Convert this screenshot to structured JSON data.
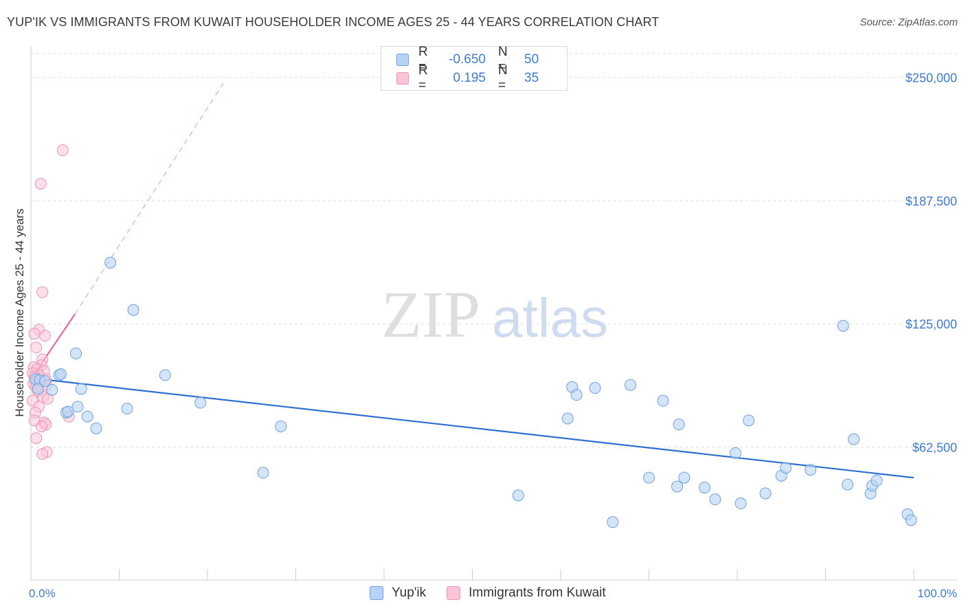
{
  "title": "YUP'IK VS IMMIGRANTS FROM KUWAIT HOUSEHOLDER INCOME AGES 25 - 44 YEARS CORRELATION CHART",
  "source": "Source: ZipAtlas.com",
  "watermark": {
    "zip": "ZIP",
    "atlas": "atlas"
  },
  "colors": {
    "blue_fill": "#b8d3f5",
    "blue_stroke": "#6ea0e0",
    "blue_line": "#2f6fd0",
    "pink_fill": "#f9c4d6",
    "pink_stroke": "#ee93b3",
    "pink_line": "#e76a95",
    "accent_text": "#3f7bd1",
    "grid": "#dddddd"
  },
  "legend": {
    "rows": [
      {
        "r_label": "R =",
        "r_value": "-0.650",
        "n_label": "N =",
        "n_value": "50"
      },
      {
        "r_label": "R =",
        "r_value": "0.195",
        "n_label": "N =",
        "n_value": "35"
      }
    ]
  },
  "bottom_legend": [
    {
      "label": "Yup'ik"
    },
    {
      "label": "Immigrants from Kuwait"
    }
  ],
  "chart_data": {
    "type": "scatter",
    "title": "YUP'IK VS IMMIGRANTS FROM KUWAIT HOUSEHOLDER INCOME AGES 25 - 44 YEARS CORRELATION CHART",
    "xlabel": "",
    "ylabel": "Householder Income Ages 25 - 44 years",
    "xlim": [
      0,
      100
    ],
    "ylim": [
      0,
      262000
    ],
    "x_tick_labels": [
      "0.0%",
      "100.0%"
    ],
    "y_ticks": [
      62500,
      125000,
      187500,
      250000
    ],
    "y_tick_labels": [
      "$62,500",
      "$125,000",
      "$187,500",
      "$250,000"
    ],
    "grid": true,
    "series": [
      {
        "name": "Yup'ik",
        "R": -0.65,
        "N": 50,
        "trend": {
          "x0": 0,
          "y0": 97500,
          "x1": 100,
          "y1": 47000
        },
        "points": [
          [
            0.5,
            97000
          ],
          [
            1.0,
            96500
          ],
          [
            1.6,
            96000
          ],
          [
            2.4,
            91500
          ],
          [
            3.2,
            99000
          ],
          [
            3.4,
            99500
          ],
          [
            4.0,
            80000
          ],
          [
            4.2,
            80500
          ],
          [
            5.1,
            110000
          ],
          [
            5.3,
            83000
          ],
          [
            5.7,
            92000
          ],
          [
            6.4,
            78000
          ],
          [
            7.4,
            72000
          ],
          [
            9.0,
            156000
          ],
          [
            10.9,
            82000
          ],
          [
            11.6,
            132000
          ],
          [
            15.2,
            99000
          ],
          [
            19.2,
            85000
          ],
          [
            26.3,
            49500
          ],
          [
            28.3,
            73000
          ],
          [
            55.2,
            38000
          ],
          [
            60.8,
            77000
          ],
          [
            61.3,
            93000
          ],
          [
            61.8,
            89000
          ],
          [
            63.9,
            92500
          ],
          [
            65.9,
            24500
          ],
          [
            67.9,
            94000
          ],
          [
            70.0,
            47000
          ],
          [
            71.6,
            86000
          ],
          [
            73.2,
            42500
          ],
          [
            73.4,
            74000
          ],
          [
            74.0,
            47000
          ],
          [
            76.3,
            42000
          ],
          [
            77.5,
            36000
          ],
          [
            79.8,
            59500
          ],
          [
            80.4,
            34000
          ],
          [
            81.3,
            76000
          ],
          [
            83.2,
            39000
          ],
          [
            85.0,
            48000
          ],
          [
            85.5,
            52000
          ],
          [
            88.3,
            51000
          ],
          [
            92.0,
            124000
          ],
          [
            92.5,
            43500
          ],
          [
            93.2,
            66500
          ],
          [
            95.1,
            39000
          ],
          [
            95.3,
            43000
          ],
          [
            95.8,
            45500
          ],
          [
            99.3,
            28500
          ],
          [
            99.7,
            25500
          ],
          [
            0.8,
            92000
          ]
        ]
      },
      {
        "name": "Immigrants from Kuwait",
        "R": 0.195,
        "N": 35,
        "trend_solid": {
          "x0": 0,
          "y0": 97000,
          "x1": 5,
          "y1": 130000
        },
        "trend_dashed": {
          "x0": 5,
          "y0": 130000,
          "x1": 21.8,
          "y1": 247000
        },
        "points": [
          [
            3.6,
            213000
          ],
          [
            1.1,
            196000
          ],
          [
            1.3,
            141000
          ],
          [
            0.9,
            122000
          ],
          [
            0.4,
            120000
          ],
          [
            1.6,
            119000
          ],
          [
            0.6,
            113000
          ],
          [
            1.3,
            107000
          ],
          [
            1.2,
            104000
          ],
          [
            0.3,
            103000
          ],
          [
            0.7,
            102000
          ],
          [
            1.5,
            101000
          ],
          [
            0.2,
            100000
          ],
          [
            0.9,
            99000
          ],
          [
            0.4,
            98000
          ],
          [
            1.7,
            97000
          ],
          [
            0.5,
            96000
          ],
          [
            1.1,
            95500
          ],
          [
            0.3,
            94500
          ],
          [
            1.8,
            94000
          ],
          [
            0.6,
            93000
          ],
          [
            0.8,
            91000
          ],
          [
            1.4,
            88000
          ],
          [
            0.2,
            86000
          ],
          [
            1.9,
            87000
          ],
          [
            0.9,
            83000
          ],
          [
            0.5,
            80000
          ],
          [
            4.3,
            78000
          ],
          [
            1.5,
            75000
          ],
          [
            1.7,
            74000
          ],
          [
            1.2,
            73000
          ],
          [
            0.6,
            67000
          ],
          [
            1.8,
            60000
          ],
          [
            1.3,
            59000
          ],
          [
            0.4,
            76000
          ]
        ]
      }
    ]
  }
}
